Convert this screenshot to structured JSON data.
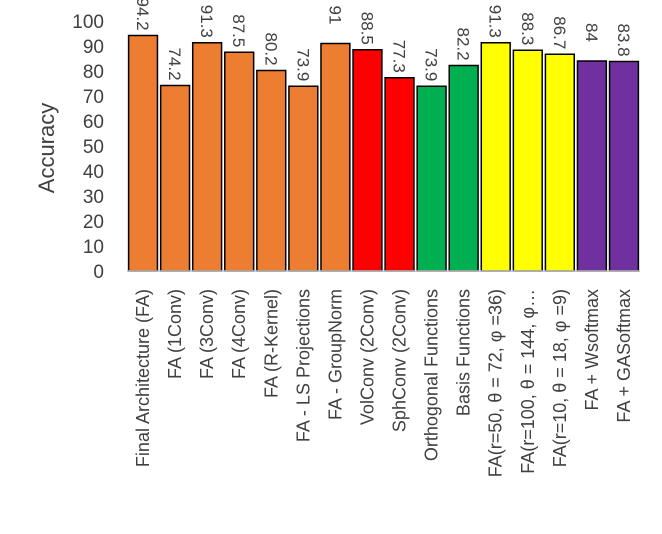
{
  "chart_data": {
    "type": "bar",
    "ylabel": "Accuracy",
    "xlabel": "",
    "ylim": [
      0,
      100
    ],
    "yticks": [
      0,
      10,
      20,
      30,
      40,
      50,
      60,
      70,
      80,
      90,
      100
    ],
    "grid": false,
    "legend": "none",
    "categories": [
      "Final Architecture (FA)",
      "FA (1Conv)",
      "FA (3Conv)",
      "FA (4Conv)",
      "FA (R-Kernel)",
      "FA - LS Projections",
      "FA - GroupNorm",
      "VolConv (2Conv)",
      "SphConv (2Conv)",
      "Orthogonal Functions",
      "Basis Functions",
      "FA(r=50, θ = 72, φ =36)",
      "FA(r=100, θ = 144, φ…",
      "FA(r=10, θ = 18, φ =9)",
      "FA + Wsoftmax",
      "FA + GASoftmax"
    ],
    "values": [
      94.2,
      74.2,
      91.3,
      87.5,
      80.2,
      73.9,
      91,
      88.5,
      77.3,
      73.9,
      82.2,
      91.3,
      88.3,
      86.7,
      84,
      83.8
    ],
    "value_labels": [
      "94.2",
      "74.2",
      "91.3",
      "87.5",
      "80.2",
      "73.9",
      "91",
      "88.5",
      "77.3",
      "73.9",
      "82.2",
      "91.3",
      "88.3",
      "86.7",
      "84",
      "83.8"
    ],
    "colors": [
      "#ED7D31",
      "#ED7D31",
      "#ED7D31",
      "#ED7D31",
      "#ED7D31",
      "#ED7D31",
      "#ED7D31",
      "#FF0000",
      "#FF0000",
      "#00B050",
      "#00B050",
      "#FFFF00",
      "#FFFF00",
      "#FFFF00",
      "#7030A0",
      "#7030A0"
    ]
  }
}
